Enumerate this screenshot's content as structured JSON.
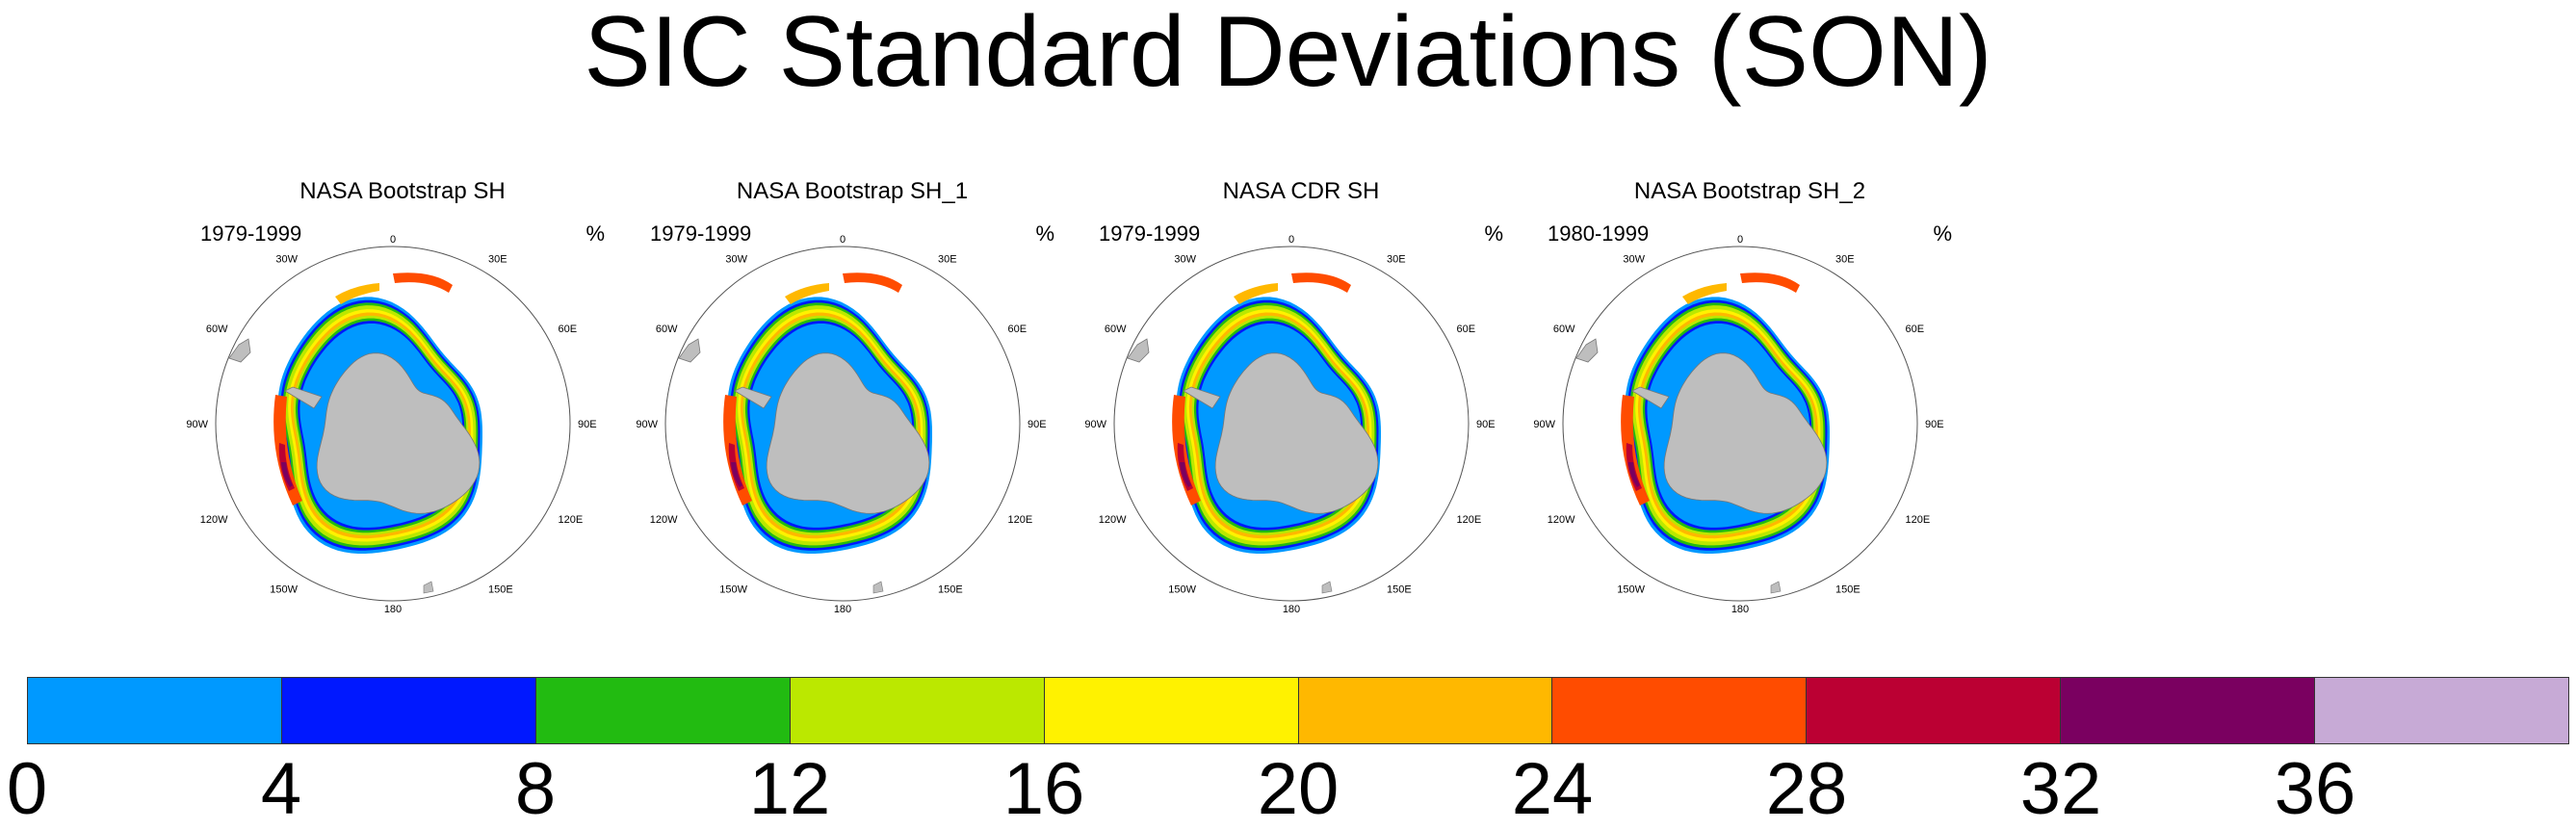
{
  "title": "SIC Standard Deviations (SON)",
  "panels": [
    {
      "title": "NASA Bootstrap SH",
      "period": "1979-1999",
      "unit": "%"
    },
    {
      "title": "NASA Bootstrap SH_1",
      "period": "1979-1999",
      "unit": "%"
    },
    {
      "title": "NASA CDR SH",
      "period": "1979-1999",
      "unit": "%"
    },
    {
      "title": "NASA Bootstrap SH_2",
      "period": "1980-1999",
      "unit": "%"
    }
  ],
  "longitude_labels": [
    "0",
    "30E",
    "60E",
    "90E",
    "120E",
    "150E",
    "180",
    "150W",
    "120W",
    "90W",
    "60W",
    "30W"
  ],
  "colorbar": {
    "ticks": [
      "0",
      "4",
      "8",
      "12",
      "16",
      "20",
      "24",
      "28",
      "32",
      "36"
    ],
    "colors": [
      "#0099ff",
      "#0018ff",
      "#22bb11",
      "#bbe800",
      "#fff200",
      "#ffb800",
      "#ff4c00",
      "#bb0033",
      "#7a0060",
      "#c7aad6"
    ]
  },
  "colors": {
    "land": "#bebebe",
    "ice_low": "#0099ff",
    "ice_mid": "#0018ff",
    "ice_green": "#22bb11",
    "ice_lime": "#bbe800",
    "ice_yellow": "#fff200",
    "ice_orange": "#ffb800",
    "ice_red": "#ff4c00",
    "ice_crimson": "#bb0033",
    "ice_maroon": "#7a0060"
  }
}
